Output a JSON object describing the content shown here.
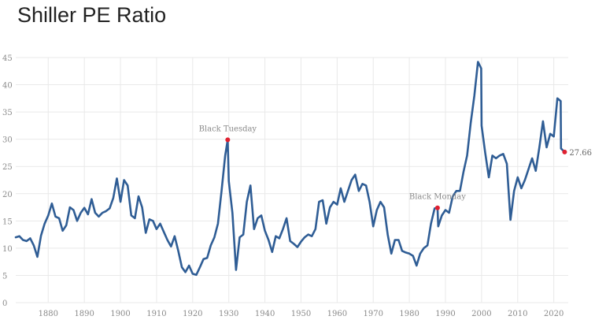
{
  "page": {
    "title": "Shiller PE Ratio"
  },
  "colors": {
    "line": "#2f5d95",
    "marker": "#e02030",
    "grid": "#e9e9e9"
  },
  "chart_data": {
    "type": "line",
    "title": "Shiller PE Ratio",
    "xlabel": "",
    "ylabel": "",
    "xlim": [
      1871,
      2024
    ],
    "ylim": [
      0,
      45
    ],
    "xticks": [
      1880,
      1890,
      1900,
      1910,
      1920,
      1930,
      1940,
      1950,
      1960,
      1970,
      1980,
      1990,
      2000,
      2010,
      2020
    ],
    "yticks": [
      0,
      5,
      10,
      15,
      20,
      25,
      30,
      35,
      40,
      45
    ],
    "grid": true,
    "series": [
      {
        "x": [
          1871,
          1872,
          1873,
          1874,
          1875,
          1876,
          1877,
          1878,
          1879,
          1880,
          1881,
          1882,
          1883,
          1884,
          1885,
          1886,
          1887,
          1888,
          1889,
          1890,
          1891,
          1892,
          1893,
          1894,
          1895,
          1896,
          1897,
          1898,
          1899,
          1900,
          1901,
          1902,
          1903,
          1904,
          1905,
          1906,
          1907,
          1908,
          1909,
          1910,
          1911,
          1912,
          1913,
          1914,
          1915,
          1916,
          1917,
          1918,
          1919,
          1920,
          1921,
          1922,
          1923,
          1924,
          1925,
          1926,
          1927,
          1928,
          1929,
          1929.7,
          1930,
          1931,
          1932,
          1933,
          1934,
          1935,
          1936,
          1937,
          1938,
          1939,
          1940,
          1941,
          1942,
          1943,
          1944,
          1945,
          1946,
          1947,
          1948,
          1949,
          1950,
          1951,
          1952,
          1953,
          1954,
          1955,
          1956,
          1957,
          1958,
          1959,
          1960,
          1961,
          1962,
          1963,
          1964,
          1965,
          1966,
          1967,
          1968,
          1969,
          1970,
          1971,
          1972,
          1973,
          1974,
          1975,
          1976,
          1977,
          1978,
          1979,
          1980,
          1981,
          1982,
          1983,
          1984,
          1985,
          1986,
          1987,
          1987.8,
          1988,
          1989,
          1990,
          1991,
          1992,
          1993,
          1994,
          1995,
          1996,
          1997,
          1998,
          1999,
          1999.9,
          2000,
          2001,
          2002,
          2003,
          2004,
          2005,
          2006,
          2007,
          2008,
          2009,
          2010,
          2011,
          2012,
          2013,
          2014,
          2015,
          2016,
          2017,
          2018,
          2019,
          2020,
          2021,
          2021.9,
          2022,
          2023
        ],
        "y": [
          12.0,
          12.2,
          11.5,
          11.3,
          11.8,
          10.5,
          8.4,
          12.3,
          14.5,
          16.0,
          18.2,
          15.8,
          15.5,
          13.2,
          14.2,
          17.5,
          17.0,
          15.0,
          16.5,
          17.4,
          16.2,
          19.0,
          16.5,
          15.8,
          16.5,
          16.8,
          17.3,
          19.2,
          22.8,
          18.5,
          22.5,
          21.5,
          16.0,
          15.5,
          19.5,
          17.5,
          12.8,
          15.3,
          15.0,
          13.5,
          14.5,
          13.0,
          11.5,
          10.3,
          12.2,
          9.5,
          6.5,
          5.6,
          6.8,
          5.3,
          5.1,
          6.5,
          8.0,
          8.2,
          10.5,
          12.0,
          14.5,
          20.5,
          27.0,
          29.9,
          22.3,
          16.5,
          6.0,
          12.0,
          12.5,
          18.5,
          21.5,
          13.5,
          15.5,
          16.0,
          13.2,
          11.5,
          9.3,
          12.2,
          11.8,
          13.5,
          15.5,
          11.3,
          10.8,
          10.2,
          11.2,
          12.0,
          12.5,
          12.2,
          13.5,
          18.5,
          18.8,
          14.5,
          17.5,
          18.5,
          18.0,
          21.0,
          18.5,
          20.5,
          22.5,
          23.5,
          20.5,
          21.8,
          21.5,
          18.5,
          14.0,
          17.0,
          18.5,
          17.5,
          12.5,
          9.0,
          11.5,
          11.5,
          9.5,
          9.2,
          9.0,
          8.6,
          6.8,
          9.0,
          10.0,
          10.5,
          14.5,
          17.3,
          17.4,
          14.0,
          16.0,
          17.0,
          16.5,
          19.5,
          20.5,
          20.5,
          24.0,
          27.0,
          33.0,
          38.0,
          44.2,
          43.0,
          32.5,
          27.5,
          23.0,
          27.0,
          26.5,
          27.0,
          27.3,
          25.5,
          15.2,
          20.5,
          23.0,
          21.0,
          22.5,
          24.5,
          26.5,
          24.2,
          28.5,
          33.3,
          28.5,
          31.0,
          30.5,
          37.5,
          37.0,
          28.3,
          27.66
        ]
      }
    ],
    "annotations": [
      {
        "label": "Black Tuesday",
        "x": 1929.7,
        "y": 29.9
      },
      {
        "label": "Black Monday",
        "x": 1987.8,
        "y": 17.4
      }
    ],
    "last_value": {
      "label": "27.66",
      "x": 2023,
      "y": 27.66
    }
  }
}
